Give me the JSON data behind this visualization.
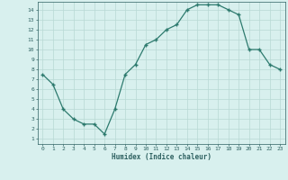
{
  "x": [
    0,
    1,
    2,
    3,
    4,
    5,
    6,
    7,
    8,
    9,
    10,
    11,
    12,
    13,
    14,
    15,
    16,
    17,
    18,
    19,
    20,
    21,
    22,
    23
  ],
  "y": [
    7.5,
    6.5,
    4.0,
    3.0,
    2.5,
    2.5,
    1.5,
    4.0,
    7.5,
    8.5,
    10.5,
    11.0,
    12.0,
    12.5,
    14.0,
    14.5,
    14.5,
    14.5,
    14.0,
    13.5,
    10.0,
    10.0,
    8.5,
    8.0
  ],
  "xlabel": "Humidex (Indice chaleur)",
  "xlim": [
    -0.5,
    23.5
  ],
  "ylim": [
    0.5,
    14.8
  ],
  "yticks": [
    1,
    2,
    3,
    4,
    5,
    6,
    7,
    8,
    9,
    10,
    11,
    12,
    13,
    14
  ],
  "xticks": [
    0,
    1,
    2,
    3,
    4,
    5,
    6,
    7,
    8,
    9,
    10,
    11,
    12,
    13,
    14,
    15,
    16,
    17,
    18,
    19,
    20,
    21,
    22,
    23
  ],
  "line_color": "#2d7a6e",
  "marker": "+",
  "bg_color": "#d8f0ee",
  "grid_color": "#b8d8d4",
  "tick_label_color": "#2d6060",
  "axis_label_color": "#2d6060"
}
